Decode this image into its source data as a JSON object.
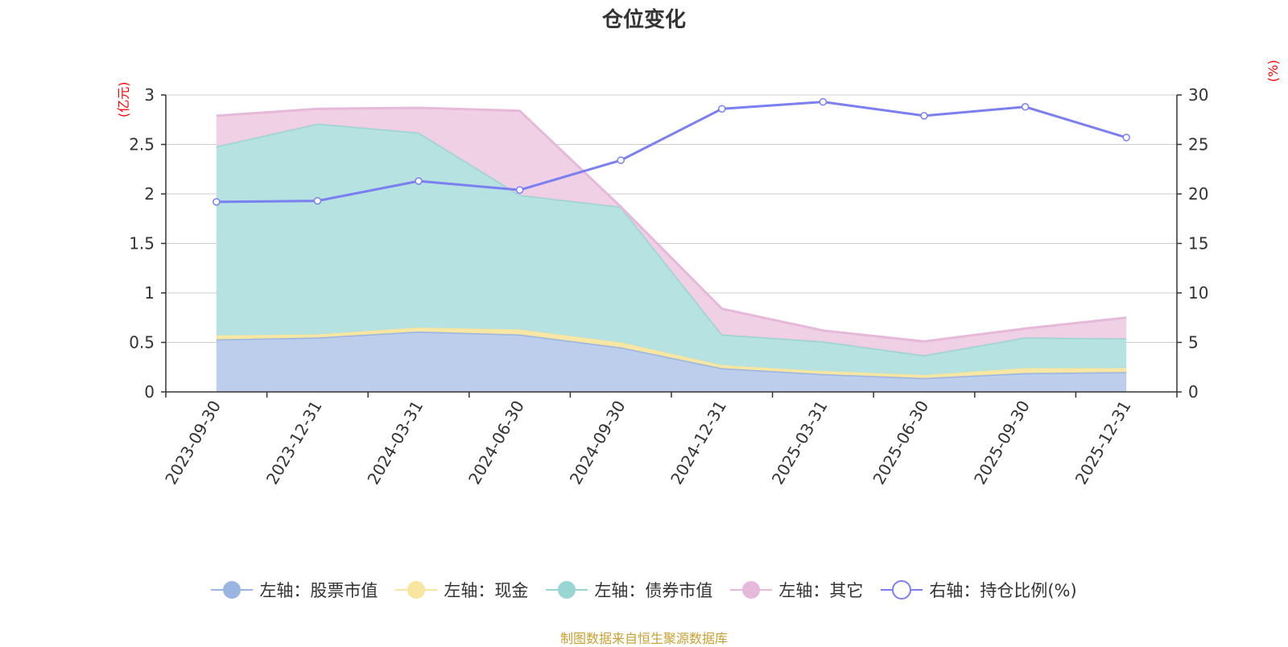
{
  "chart_data": {
    "type": "area",
    "title": "仓位变化",
    "left_unit": "(亿元)",
    "right_unit": "(%)",
    "categories": [
      "2023-09-30",
      "2023-12-31",
      "2024-03-31",
      "2024-06-30",
      "2024-09-30",
      "2024-12-31",
      "2025-03-31",
      "2025-06-30",
      "2025-09-30",
      "2025-12-31"
    ],
    "left_axis": {
      "min": 0,
      "max": 3,
      "ticks": [
        "0",
        "0.5",
        "1",
        "1.5",
        "2",
        "2.5",
        "3"
      ]
    },
    "right_axis": {
      "min": 0,
      "max": 30,
      "ticks": [
        "0",
        "5",
        "10",
        "15",
        "20",
        "25",
        "30"
      ]
    },
    "stacked_series": [
      {
        "name": "左轴：股票市值",
        "color": "#9ab5e1",
        "fill": "#b8cbea",
        "values": [
          0.53,
          0.55,
          0.61,
          0.58,
          0.45,
          0.24,
          0.18,
          0.14,
          0.19,
          0.2
        ]
      },
      {
        "name": "左轴：现金",
        "color": "#f8e6a0",
        "fill": "#f8e6a0",
        "values": [
          0.04,
          0.03,
          0.04,
          0.05,
          0.05,
          0.03,
          0.03,
          0.03,
          0.05,
          0.04
        ]
      },
      {
        "name": "左轴：债券市值",
        "color": "#99d5d3",
        "fill": "#b2e0df",
        "values": [
          1.91,
          2.13,
          1.97,
          1.36,
          1.37,
          0.31,
          0.3,
          0.2,
          0.31,
          0.3
        ]
      },
      {
        "name": "左轴：其它",
        "color": "#e6b8d9",
        "fill": "#efcde4",
        "values": [
          0.31,
          0.15,
          0.25,
          0.85,
          0.0,
          0.26,
          0.11,
          0.14,
          0.09,
          0.21
        ]
      }
    ],
    "line_series": {
      "name": "右轴：持仓比例(%)",
      "color": "#7b7ff0",
      "values": [
        19.2,
        19.3,
        21.3,
        20.4,
        23.4,
        28.6,
        29.3,
        27.9,
        28.8,
        25.7
      ]
    },
    "source": "制图数据来自恒生聚源数据库"
  }
}
